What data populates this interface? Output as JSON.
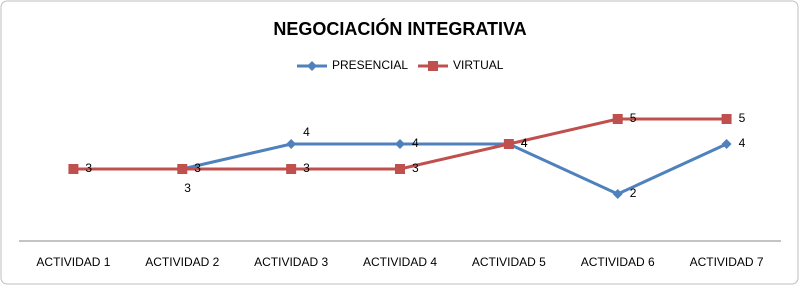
{
  "chart_data": {
    "type": "line",
    "title": "NEGOCIACIÓN INTEGRATIVA",
    "categories": [
      "ACTIVIDAD 1",
      "ACTIVIDAD 2",
      "ACTIVIDAD 3",
      "ACTIVIDAD 4",
      "ACTIVIDAD 5",
      "ACTIVIDAD 6",
      "ACTIVIDAD 7"
    ],
    "series": [
      {
        "name": "PRESENCIAL",
        "color": "#4f81bd",
        "marker": "diamond",
        "values": [
          null,
          3,
          4,
          4,
          4,
          2,
          4
        ]
      },
      {
        "name": "VIRTUAL",
        "color": "#c0504d",
        "marker": "square",
        "values": [
          3,
          3,
          3,
          3,
          4,
          5,
          5
        ]
      }
    ],
    "ylim": [
      0,
      6
    ],
    "legend": "top"
  }
}
